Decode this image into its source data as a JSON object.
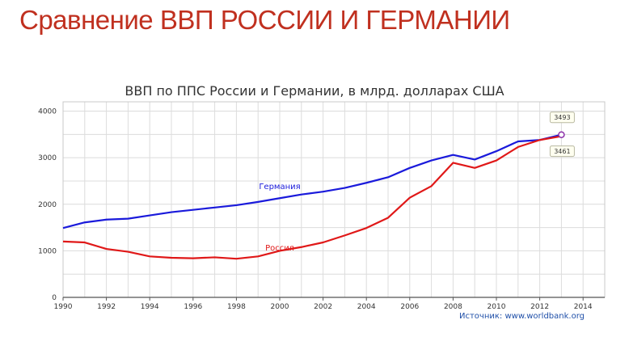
{
  "slide_title": "Сравнение ВВП РОССИИ И ГЕРМАНИИ",
  "source": "Источник: www.worldbank.org",
  "colors": {
    "germany": "#1a1adb",
    "russia": "#e01818",
    "grid": "#dcdcdc",
    "title": "#c0301f"
  },
  "chart_data": {
    "type": "line",
    "title": "ВВП по ППС России и Германии, в млрд. долларах США",
    "xlabel": "",
    "ylabel": "",
    "xlim": [
      1990,
      2015
    ],
    "ylim": [
      0,
      4200
    ],
    "x_ticks": [
      1990,
      1992,
      1994,
      1996,
      1998,
      2000,
      2002,
      2004,
      2006,
      2008,
      2010,
      2012,
      2014
    ],
    "y_ticks": [
      0,
      1000,
      2000,
      3000,
      4000
    ],
    "grid": true,
    "x": [
      1990,
      1991,
      1992,
      1993,
      1994,
      1995,
      1996,
      1997,
      1998,
      1999,
      2000,
      2001,
      2002,
      2003,
      2004,
      2005,
      2006,
      2007,
      2008,
      2009,
      2010,
      2011,
      2012,
      2013
    ],
    "series": [
      {
        "name": "Германия",
        "color": "#1a1adb",
        "values": [
          1490,
          1610,
          1670,
          1690,
          1760,
          1830,
          1880,
          1930,
          1980,
          2050,
          2130,
          2210,
          2270,
          2350,
          2460,
          2580,
          2780,
          2940,
          3060,
          2960,
          3140,
          3350,
          3380,
          3493
        ]
      },
      {
        "name": "Россия",
        "color": "#e01818",
        "values": [
          1200,
          1180,
          1040,
          980,
          880,
          850,
          840,
          860,
          830,
          880,
          1000,
          1080,
          1180,
          1330,
          1490,
          1710,
          2140,
          2390,
          2890,
          2780,
          2940,
          3230,
          3380,
          3461
        ]
      }
    ],
    "annotations": [
      {
        "x": 2013,
        "y": 3493,
        "text": "3493"
      },
      {
        "x": 2013,
        "y": 3461,
        "text": "3461"
      }
    ]
  }
}
